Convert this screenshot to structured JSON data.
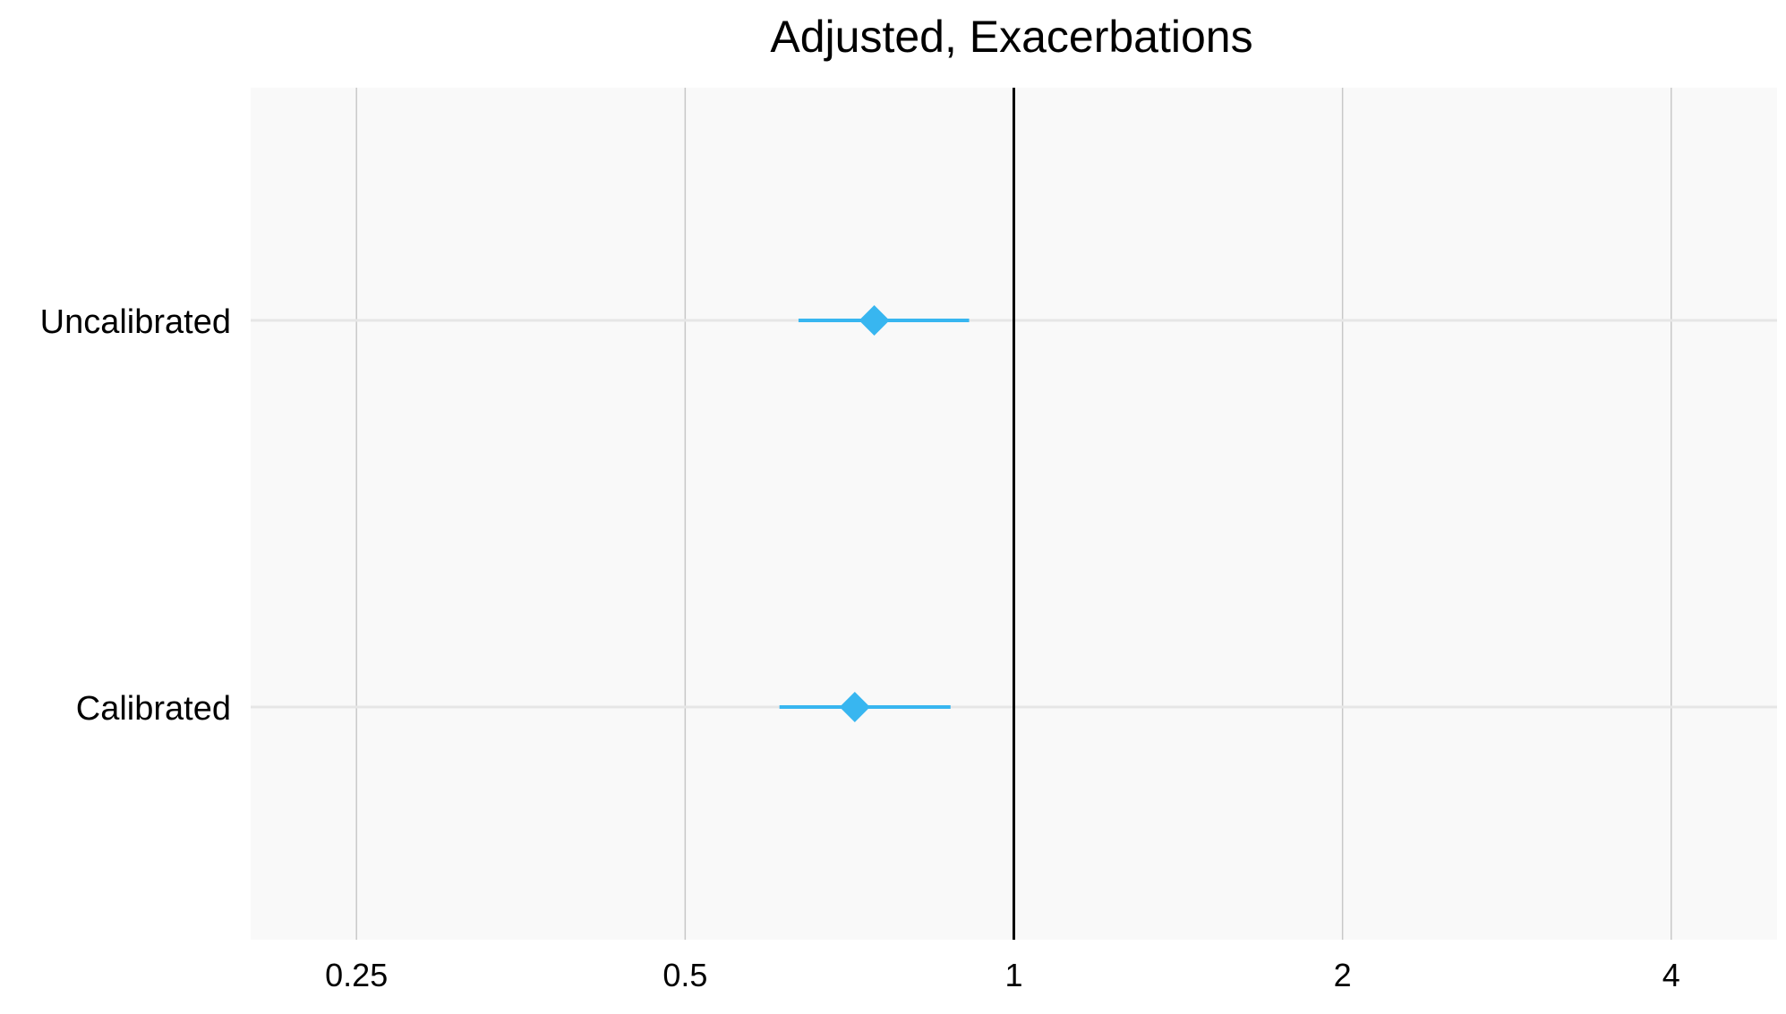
{
  "chart_data": {
    "type": "forest",
    "title": "Adjusted, Exacerbations",
    "xlabel": "",
    "ylabel": "",
    "x_scale": "log2",
    "xlim": [
      0.2,
      5
    ],
    "x_ticks": [
      0.25,
      0.5,
      1,
      2,
      4
    ],
    "x_tick_labels": [
      "0.25",
      "0.5",
      "1",
      "2",
      "4"
    ],
    "reference_line": 1,
    "grid": true,
    "categories": [
      "Uncalibrated",
      "Calibrated"
    ],
    "points": [
      {
        "label": "Uncalibrated",
        "estimate": 0.745,
        "lower": 0.635,
        "upper": 0.91
      },
      {
        "label": "Calibrated",
        "estimate": 0.715,
        "lower": 0.61,
        "upper": 0.875
      }
    ],
    "colors": {
      "point": "#38b6f0",
      "panel_background": "#f9f9f9",
      "grid": "#c8c8c8",
      "reference_line": "#000000"
    }
  }
}
